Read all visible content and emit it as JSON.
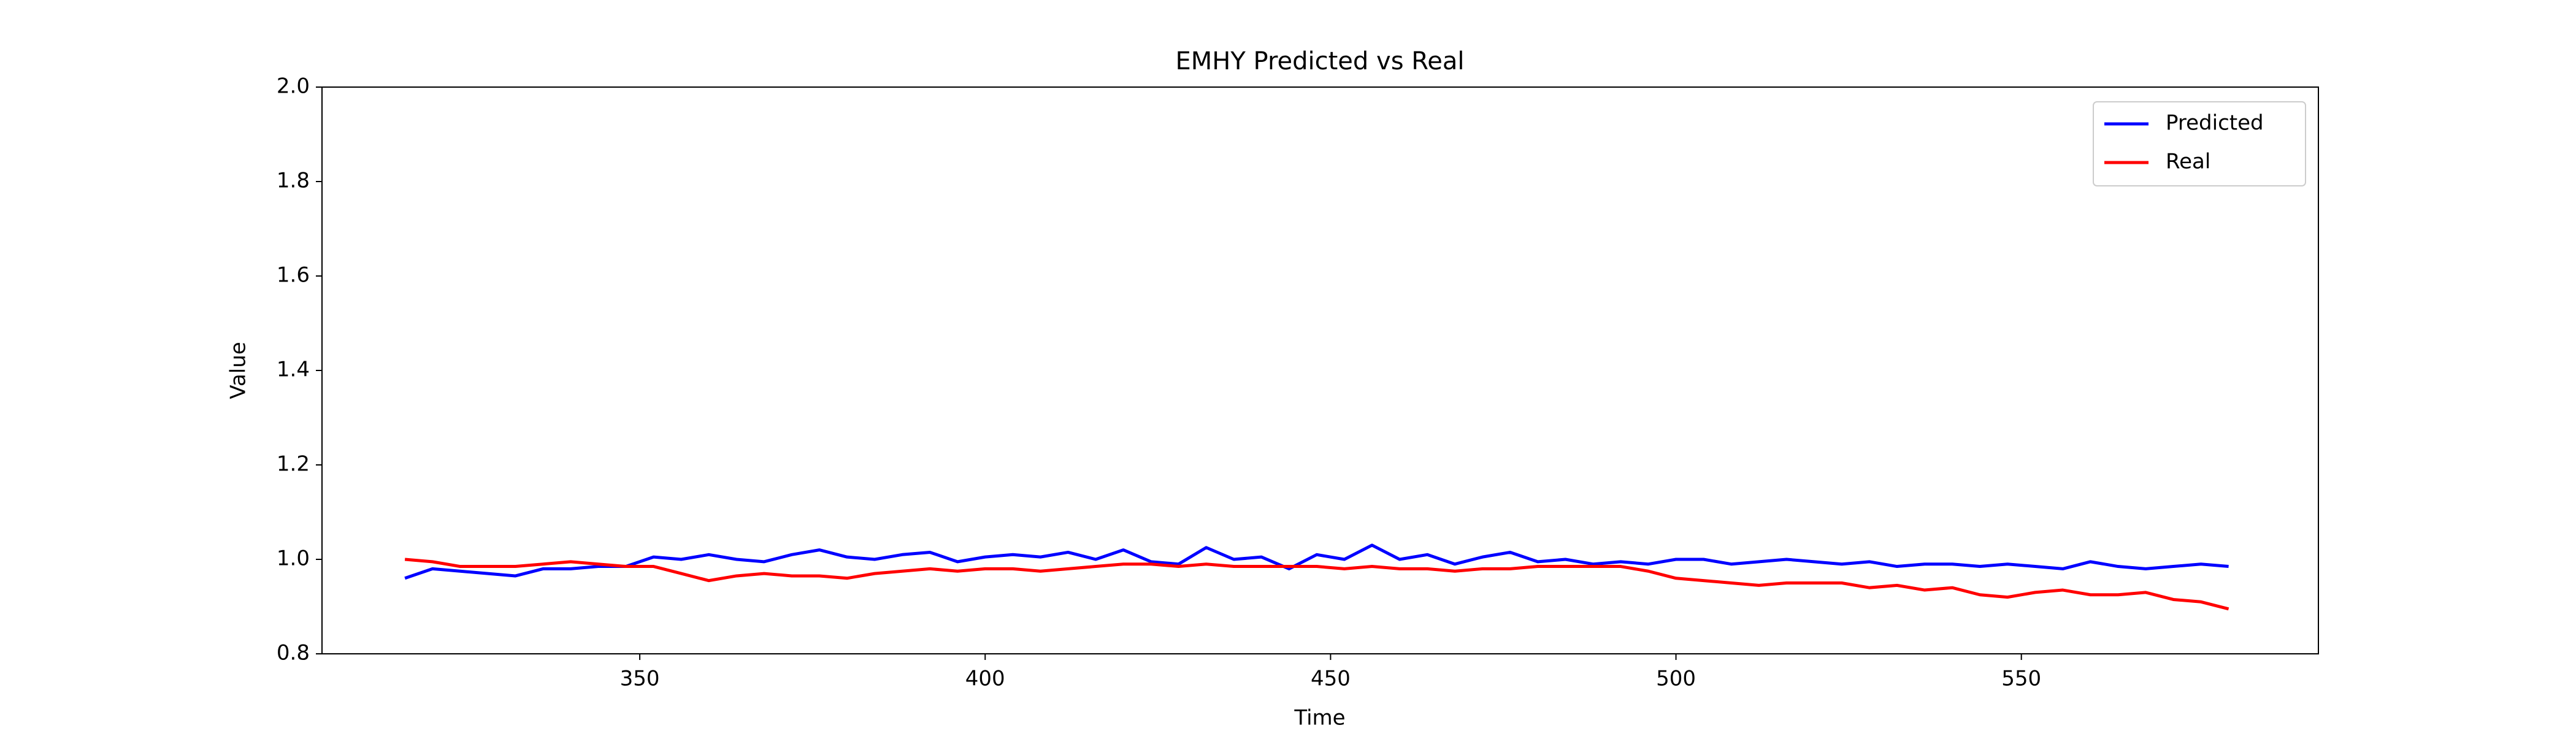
{
  "chart_data": {
    "type": "line",
    "title": "EMHY Predicted vs Real",
    "xlabel": "Time",
    "ylabel": "Value",
    "x": [
      316,
      320,
      324,
      328,
      332,
      336,
      340,
      344,
      348,
      352,
      356,
      360,
      364,
      368,
      372,
      376,
      380,
      384,
      388,
      392,
      396,
      400,
      404,
      408,
      412,
      416,
      420,
      424,
      428,
      432,
      436,
      440,
      444,
      448,
      452,
      456,
      460,
      464,
      468,
      472,
      476,
      480,
      484,
      488,
      492,
      496,
      500,
      504,
      508,
      512,
      516,
      520,
      524,
      528,
      532,
      536,
      540,
      544,
      548,
      552,
      556,
      560,
      564,
      568,
      572,
      576,
      580
    ],
    "series": [
      {
        "name": "Predicted",
        "color": "#0000ff",
        "values": [
          0.96,
          0.98,
          0.975,
          0.97,
          0.965,
          0.98,
          0.98,
          0.985,
          0.985,
          1.005,
          1.0,
          1.01,
          1.0,
          0.995,
          1.01,
          1.02,
          1.005,
          1.0,
          1.01,
          1.015,
          0.995,
          1.005,
          1.01,
          1.005,
          1.015,
          1.0,
          1.02,
          0.995,
          0.99,
          1.025,
          1.0,
          1.005,
          0.98,
          1.01,
          1.0,
          1.03,
          1.0,
          1.01,
          0.99,
          1.005,
          1.015,
          0.995,
          1.0,
          0.99,
          0.995,
          0.99,
          1.0,
          1.0,
          0.99,
          0.995,
          1.0,
          0.995,
          0.99,
          0.995,
          0.985,
          0.99,
          0.99,
          0.985,
          0.99,
          0.985,
          0.98,
          0.995,
          0.985,
          0.98,
          0.985,
          0.99,
          0.985
        ]
      },
      {
        "name": "Real",
        "color": "#ff0000",
        "values": [
          1.0,
          0.995,
          0.985,
          0.985,
          0.985,
          0.99,
          0.995,
          0.99,
          0.985,
          0.985,
          0.97,
          0.955,
          0.965,
          0.97,
          0.965,
          0.965,
          0.96,
          0.97,
          0.975,
          0.98,
          0.975,
          0.98,
          0.98,
          0.975,
          0.98,
          0.985,
          0.99,
          0.99,
          0.985,
          0.99,
          0.985,
          0.985,
          0.985,
          0.985,
          0.98,
          0.985,
          0.98,
          0.98,
          0.975,
          0.98,
          0.98,
          0.985,
          0.985,
          0.985,
          0.985,
          0.975,
          0.96,
          0.955,
          0.95,
          0.945,
          0.95,
          0.95,
          0.95,
          0.94,
          0.945,
          0.935,
          0.94,
          0.925,
          0.92,
          0.93,
          0.935,
          0.925,
          0.925,
          0.93,
          0.915,
          0.91,
          0.895
        ]
      }
    ],
    "xlim": [
      304,
      593
    ],
    "xticks": [
      350,
      400,
      450,
      500,
      550
    ],
    "ylim": [
      0.8,
      2.0
    ],
    "yticks": [
      0.8,
      {
        "value": 1,
        "label": "1.0"
      },
      1.2,
      1.4,
      1.6,
      1.8,
      {
        "value": 2,
        "label": "2.0"
      }
    ],
    "grid": false,
    "legend": "upper right"
  }
}
